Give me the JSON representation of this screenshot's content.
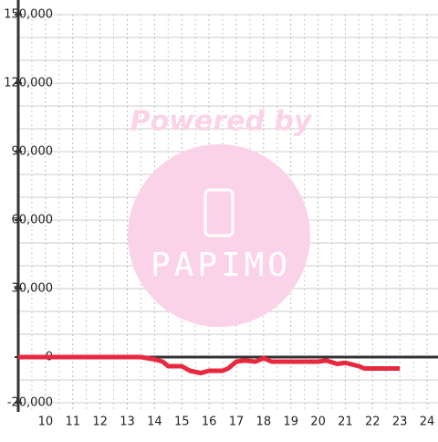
{
  "chart_data": {
    "type": "line",
    "annotations": [
      "Powered by",
      "PAPIMO"
    ],
    "x": [
      9,
      13.5,
      14,
      14.3,
      14.5,
      15,
      15.3,
      15.7,
      16,
      16.5,
      16.7,
      17,
      17.3,
      17.7,
      18,
      18.3,
      19,
      19.5,
      20,
      20.3,
      20.7,
      21,
      21.5,
      21.7,
      22,
      23
    ],
    "series": [
      {
        "color": "#e8283e",
        "values": [
          0,
          0,
          -1000,
          -2000,
          -4000,
          -4000,
          -6000,
          -7000,
          -6000,
          -6000,
          -5000,
          -2000,
          -1500,
          -2000,
          -500,
          -2000,
          -2000,
          -2000,
          -2000,
          -1500,
          -3000,
          -2500,
          -4000,
          -5000,
          -5000,
          -5000
        ]
      }
    ],
    "xlim": [
      9,
      24.4
    ],
    "xticks": [
      10,
      11,
      12,
      13,
      14,
      15,
      16,
      17,
      18,
      19,
      20,
      21,
      22,
      23,
      24
    ],
    "ylim": [
      -24000,
      150000
    ],
    "yticks": [
      {
        "value": -20000,
        "label": "-20,000"
      },
      0,
      {
        "value": 30000,
        "label": "30,000"
      },
      {
        "value": 60000,
        "label": "60,000"
      },
      {
        "value": 90000,
        "label": "90,000"
      },
      {
        "value": 120000,
        "label": "120,000"
      },
      {
        "value": 150000,
        "label": "150,000"
      }
    ],
    "minor_yticks": [
      -20000,
      -10000,
      0,
      10000,
      20000,
      30000,
      40000,
      50000,
      60000,
      70000,
      80000,
      90000,
      100000,
      110000,
      120000,
      130000,
      140000,
      150000
    ],
    "minor_xticks": [
      9.5,
      10.5,
      11.5,
      12.5,
      13.5,
      14.5,
      15.5,
      16.5,
      17.5,
      18.5,
      19.5,
      20.5,
      21.5,
      22.5,
      23.5
    ],
    "grid": true
  }
}
